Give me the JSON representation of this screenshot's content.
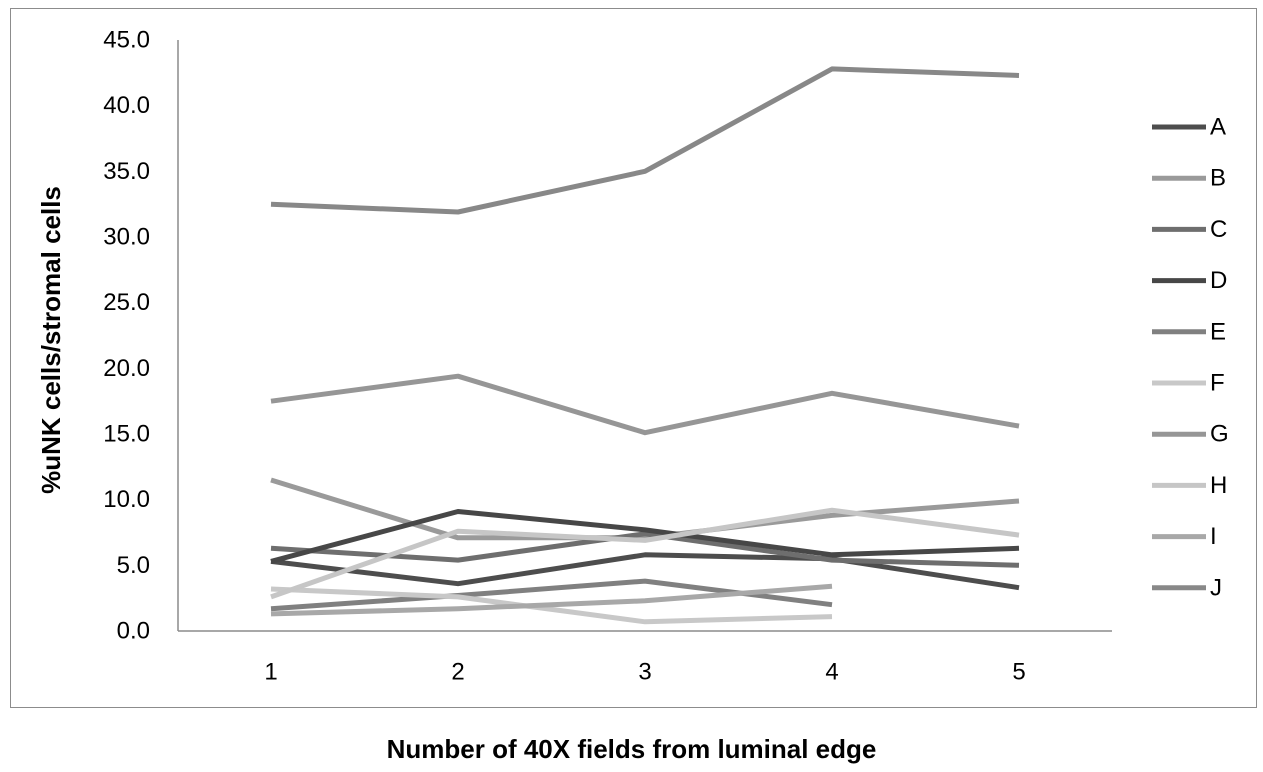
{
  "chart_data": {
    "type": "line",
    "title": "",
    "xlabel": "Number of 40X fields from luminal edge",
    "ylabel": "%uNK cells/stromal cells",
    "x": [
      1,
      2,
      3,
      4,
      5
    ],
    "x_tick_labels": [
      "1",
      "2",
      "3",
      "4",
      "5"
    ],
    "ylim": [
      0,
      45
    ],
    "y_tick_labels": [
      "0.0",
      "5.0",
      "10.0",
      "15.0",
      "20.0",
      "25.0",
      "30.0",
      "35.0",
      "40.0",
      "45.0"
    ],
    "grid": false,
    "legend_position": "right",
    "series": [
      {
        "name": "A",
        "color": "#4d4d4d",
        "values": [
          5.3,
          3.6,
          5.8,
          5.5,
          3.3
        ]
      },
      {
        "name": "B",
        "color": "#9a9a9a",
        "values": [
          11.5,
          7.1,
          7.1,
          8.8,
          9.9
        ]
      },
      {
        "name": "C",
        "color": "#6e6e6e",
        "values": [
          6.3,
          5.4,
          7.4,
          5.4,
          5.0
        ]
      },
      {
        "name": "D",
        "color": "#474747",
        "values": [
          5.3,
          9.1,
          7.7,
          5.8,
          6.3
        ]
      },
      {
        "name": "E",
        "color": "#808080",
        "values": [
          1.7,
          2.7,
          3.8,
          2.0,
          null
        ]
      },
      {
        "name": "F",
        "color": "#c8c8c8",
        "values": [
          3.2,
          2.6,
          0.7,
          1.1,
          null
        ]
      },
      {
        "name": "G",
        "color": "#969696",
        "values": [
          17.5,
          19.4,
          15.1,
          18.1,
          15.6
        ]
      },
      {
        "name": "H",
        "color": "#c6c6c6",
        "values": [
          2.6,
          7.6,
          6.9,
          9.2,
          7.3
        ]
      },
      {
        "name": "I",
        "color": "#a8a8a8",
        "values": [
          1.3,
          1.7,
          2.3,
          3.4,
          null
        ]
      },
      {
        "name": "J",
        "color": "#888888",
        "values": [
          32.5,
          31.9,
          35.0,
          42.8,
          42.3
        ]
      }
    ]
  }
}
